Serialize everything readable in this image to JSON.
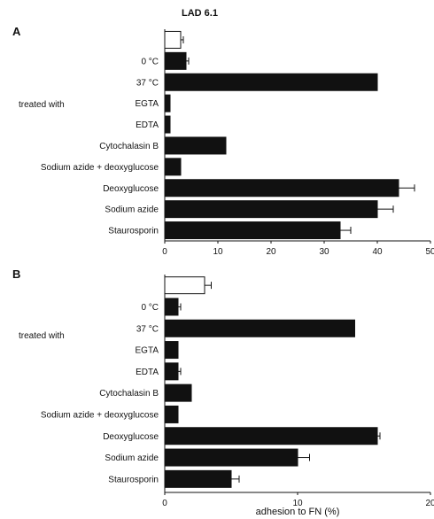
{
  "figure_title": "LAD 6.1",
  "row_group_label": "treated with",
  "xlabel": "adhesion to FN (%)",
  "chart_data": [
    {
      "type": "bar",
      "orientation": "horizontal",
      "panel": "A",
      "categories": [
        "",
        "0 °C",
        "37 °C",
        "EGTA",
        "EDTA",
        "Cytochalasin B",
        "Sodium azide + deoxyglucose",
        "Deoxyglucose",
        "Sodium azide",
        "Staurosporin"
      ],
      "values": [
        3,
        4,
        40,
        1,
        1,
        11.5,
        3,
        44,
        40,
        33
      ],
      "errors": [
        0.5,
        0.5,
        0,
        0,
        0,
        0,
        0,
        3,
        3,
        2
      ],
      "bar_fill": [
        "#ffffff",
        "#111111",
        "#111111",
        "#111111",
        "#111111",
        "#111111",
        "#111111",
        "#111111",
        "#111111",
        "#111111"
      ],
      "xlim": [
        0,
        50
      ],
      "xticks": [
        "0",
        "10",
        "20",
        "30",
        "40",
        "50"
      ]
    },
    {
      "type": "bar",
      "orientation": "horizontal",
      "panel": "B",
      "categories": [
        "",
        "0 °C",
        "37 °C",
        "EGTA",
        "EDTA",
        "Cytochalasin B",
        "Sodium azide + deoxyglucose",
        "Deoxyglucose",
        "Sodium azide",
        "Staurosporin"
      ],
      "values": [
        3,
        1,
        14.3,
        1,
        1,
        2,
        1,
        16,
        10,
        5
      ],
      "errors": [
        0.5,
        0.2,
        0,
        0,
        0.2,
        0,
        0,
        0.2,
        0.9,
        0.6
      ],
      "bar_fill": [
        "#ffffff",
        "#111111",
        "#111111",
        "#111111",
        "#111111",
        "#111111",
        "#111111",
        "#111111",
        "#111111",
        "#111111"
      ],
      "xlim": [
        0,
        20
      ],
      "xticks": [
        "0",
        "10",
        "20"
      ]
    }
  ]
}
